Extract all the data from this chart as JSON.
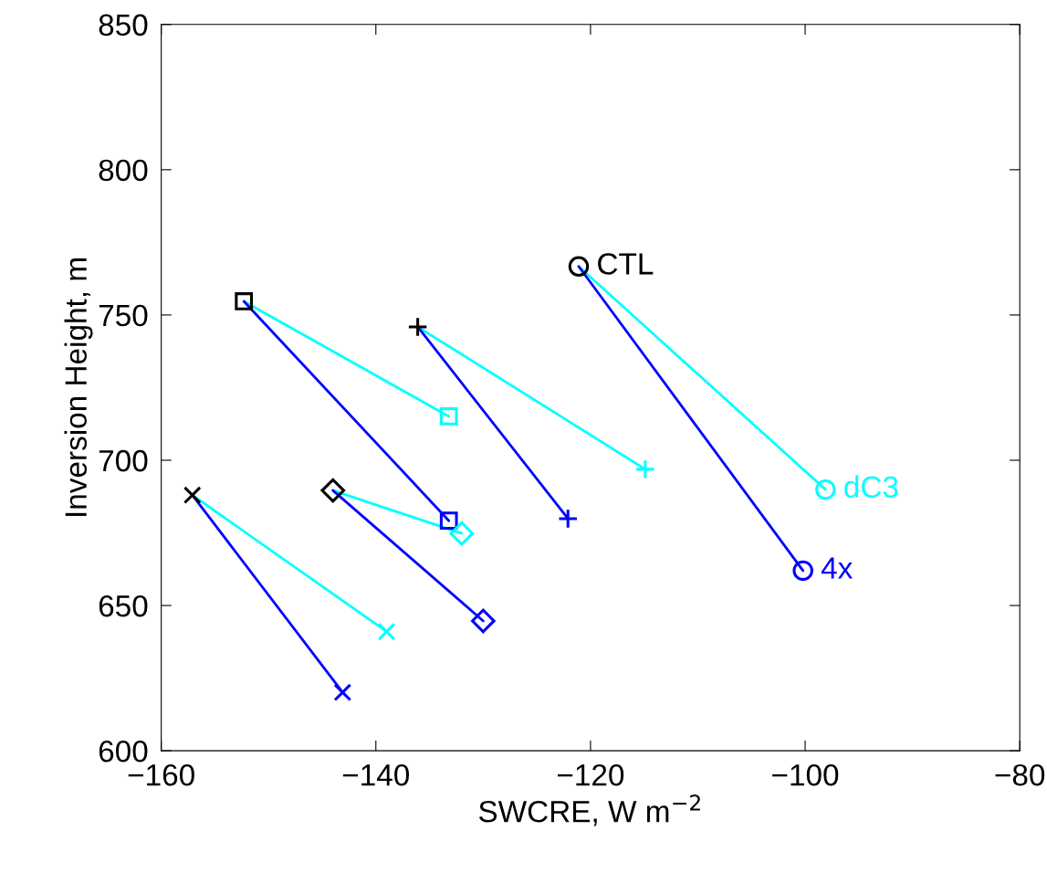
{
  "chart_data": {
    "type": "scatter",
    "xlabel": "SWCRE, W m$^{−2}$",
    "ylabel": "Inversion Height, m",
    "xlim": [
      -160,
      -80
    ],
    "ylim": [
      600,
      850
    ],
    "xticks": [
      -160,
      -140,
      -120,
      -100,
      -80
    ],
    "yticks": [
      600,
      650,
      700,
      750,
      800,
      850
    ],
    "grid": false,
    "legend": false,
    "series": [
      {
        "type": "line",
        "color": "#00ffff",
        "marker": "none",
        "x": [
          -121.1,
          -98.1
        ],
        "values": [
          766.7,
          689.9
        ]
      },
      {
        "type": "line",
        "color": "#0000ff",
        "marker": "none",
        "x": [
          -121.1,
          -100.2
        ],
        "values": [
          766.7,
          662
        ]
      },
      {
        "type": "line",
        "color": "#00ffff",
        "marker": "none",
        "x": [
          -152.3,
          -133.2
        ],
        "values": [
          754.7,
          715.1
        ]
      },
      {
        "type": "line",
        "color": "#0000ff",
        "marker": "none",
        "x": [
          -152.3,
          -133.2
        ],
        "values": [
          754.7,
          679.2
        ]
      },
      {
        "type": "line",
        "color": "#00ffff",
        "marker": "none",
        "x": [
          -136.1,
          -114.9
        ],
        "values": [
          745.9,
          696.9
        ]
      },
      {
        "type": "line",
        "color": "#0000ff",
        "marker": "none",
        "x": [
          -136.1,
          -122.1
        ],
        "values": [
          745.9,
          679.9
        ]
      },
      {
        "type": "line",
        "color": "#00ffff",
        "marker": "none",
        "x": [
          -144.0,
          -132.0
        ],
        "values": [
          689.6,
          674.8
        ]
      },
      {
        "type": "line",
        "color": "#0000ff",
        "marker": "none",
        "x": [
          -144.0,
          -130.0
        ],
        "values": [
          689.6,
          644.7
        ]
      },
      {
        "type": "line",
        "color": "#00ffff",
        "marker": "none",
        "x": [
          -157.1,
          -139.0
        ],
        "values": [
          688,
          641
        ]
      },
      {
        "type": "line",
        "color": "#0000ff",
        "marker": "none",
        "x": [
          -157.1,
          -143.1
        ],
        "values": [
          688,
          620.1
        ]
      },
      {
        "name": "CTL",
        "color": "#000000",
        "marker": "circle",
        "x": [
          -121.1
        ],
        "values": [
          766.7
        ]
      },
      {
        "name": "dC3",
        "color": "#00ffff",
        "marker": "circle",
        "x": [
          -98.1
        ],
        "values": [
          689.9
        ]
      },
      {
        "name": "4x",
        "color": "#0000ff",
        "marker": "circle",
        "x": [
          -100.2
        ],
        "values": [
          662
        ]
      },
      {
        "color": "#000000",
        "marker": "square",
        "x": [
          -152.3
        ],
        "values": [
          754.7
        ]
      },
      {
        "color": "#00ffff",
        "marker": "square",
        "x": [
          -133.2
        ],
        "values": [
          715.1
        ]
      },
      {
        "color": "#0000ff",
        "marker": "square",
        "x": [
          -133.2
        ],
        "values": [
          679.2
        ]
      },
      {
        "color": "#000000",
        "marker": "plus",
        "x": [
          -136.1
        ],
        "values": [
          745.9
        ]
      },
      {
        "color": "#00ffff",
        "marker": "plus",
        "x": [
          -114.9
        ],
        "values": [
          696.9
        ]
      },
      {
        "color": "#0000ff",
        "marker": "plus",
        "x": [
          -122.1
        ],
        "values": [
          679.9
        ]
      },
      {
        "color": "#000000",
        "marker": "diamond",
        "x": [
          -144.0
        ],
        "values": [
          689.6
        ]
      },
      {
        "color": "#00ffff",
        "marker": "diamond",
        "x": [
          -132.0
        ],
        "values": [
          674.8
        ]
      },
      {
        "color": "#0000ff",
        "marker": "diamond",
        "x": [
          -130.0
        ],
        "values": [
          644.7
        ]
      },
      {
        "color": "#000000",
        "marker": "cross",
        "x": [
          -157.1
        ],
        "values": [
          688
        ]
      },
      {
        "color": "#00ffff",
        "marker": "cross",
        "x": [
          -139.0
        ],
        "values": [
          641
        ]
      },
      {
        "color": "#0000ff",
        "marker": "cross",
        "x": [
          -143.1
        ],
        "values": [
          620.1
        ]
      }
    ]
  }
}
